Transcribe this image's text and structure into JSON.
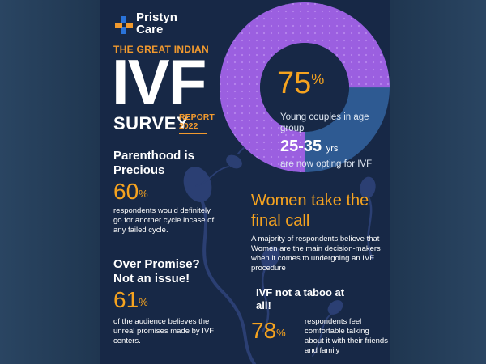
{
  "brand": {
    "name_line1": "Pristyn",
    "name_line2": "Care",
    "icon": "plus-cross-logo-icon",
    "colors": {
      "blue": "#2a73d9",
      "orange": "#f29a2e"
    }
  },
  "header": {
    "great_indian": "THE GREAT INDIAN",
    "ivf": "IVF",
    "survey": "SURVEY",
    "report_line1": "REPORT",
    "report_line2": "2022"
  },
  "donut": {
    "percent": 75,
    "percent_value": "75",
    "percent_unit": "%",
    "color_filled": "#9b5fe0",
    "color_rest": "#2e5a92",
    "line1": "Young couples in age group",
    "age_range": "25-35",
    "age_unit": "yrs",
    "line2": "are now opting for IVF"
  },
  "parenthood": {
    "title": "Parenthood is Precious",
    "value": "60",
    "unit": "%",
    "text": "respondents would definitely go for another cycle incase of any failed cycle."
  },
  "promise": {
    "title": "Over Promise? Not an issue!",
    "value": "61",
    "unit": "%",
    "text": "of the audience believes the unreal promises made by IVF centers."
  },
  "women": {
    "title": "Women take the final call",
    "text": "A majority of respondents believe that Women are the main decision-makers when it comes to undergoing an IVF procedure"
  },
  "taboo": {
    "title": "IVF not a taboo at all!",
    "value": "78",
    "unit": "%",
    "text": "respondents feel comfortable talking about it with their friends and family"
  },
  "colors": {
    "background": "#172846",
    "accent_orange": "#f6a31f",
    "sperm_art": "#2b3f73"
  }
}
